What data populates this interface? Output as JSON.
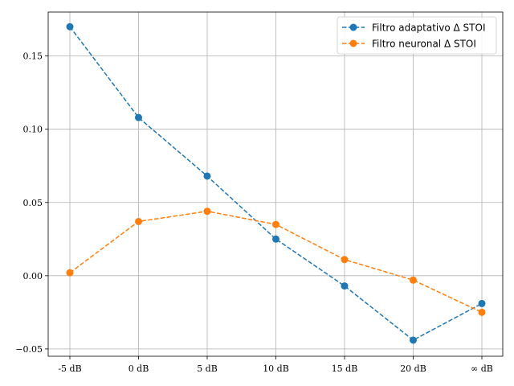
{
  "chart_data": {
    "type": "line",
    "title": "",
    "xlabel": "",
    "ylabel": "",
    "categories": [
      "-5 dB",
      "0 dB",
      "5 dB",
      "10 dB",
      "15 dB",
      "20 dB",
      "∞ dB"
    ],
    "ylim": [
      -0.055,
      0.18
    ],
    "yticks": [
      0.15,
      0.1,
      0.05,
      0.0,
      -0.05
    ],
    "ytick_labels": [
      "0.15",
      "0.10",
      "0.05",
      "0.00",
      "−0.05"
    ],
    "grid": true,
    "legend_position": "top-right",
    "line_style": "dashed",
    "marker": "circle",
    "series": [
      {
        "name": "Filtro adaptativo Δ STOI",
        "color": "#1f77b4",
        "values": [
          0.17,
          0.108,
          0.068,
          0.025,
          -0.007,
          -0.044,
          -0.019
        ]
      },
      {
        "name": "Filtro neuronal Δ STOI",
        "color": "#ff7f0e",
        "values": [
          0.002,
          0.037,
          0.044,
          0.035,
          0.011,
          -0.003,
          -0.025
        ]
      }
    ]
  }
}
